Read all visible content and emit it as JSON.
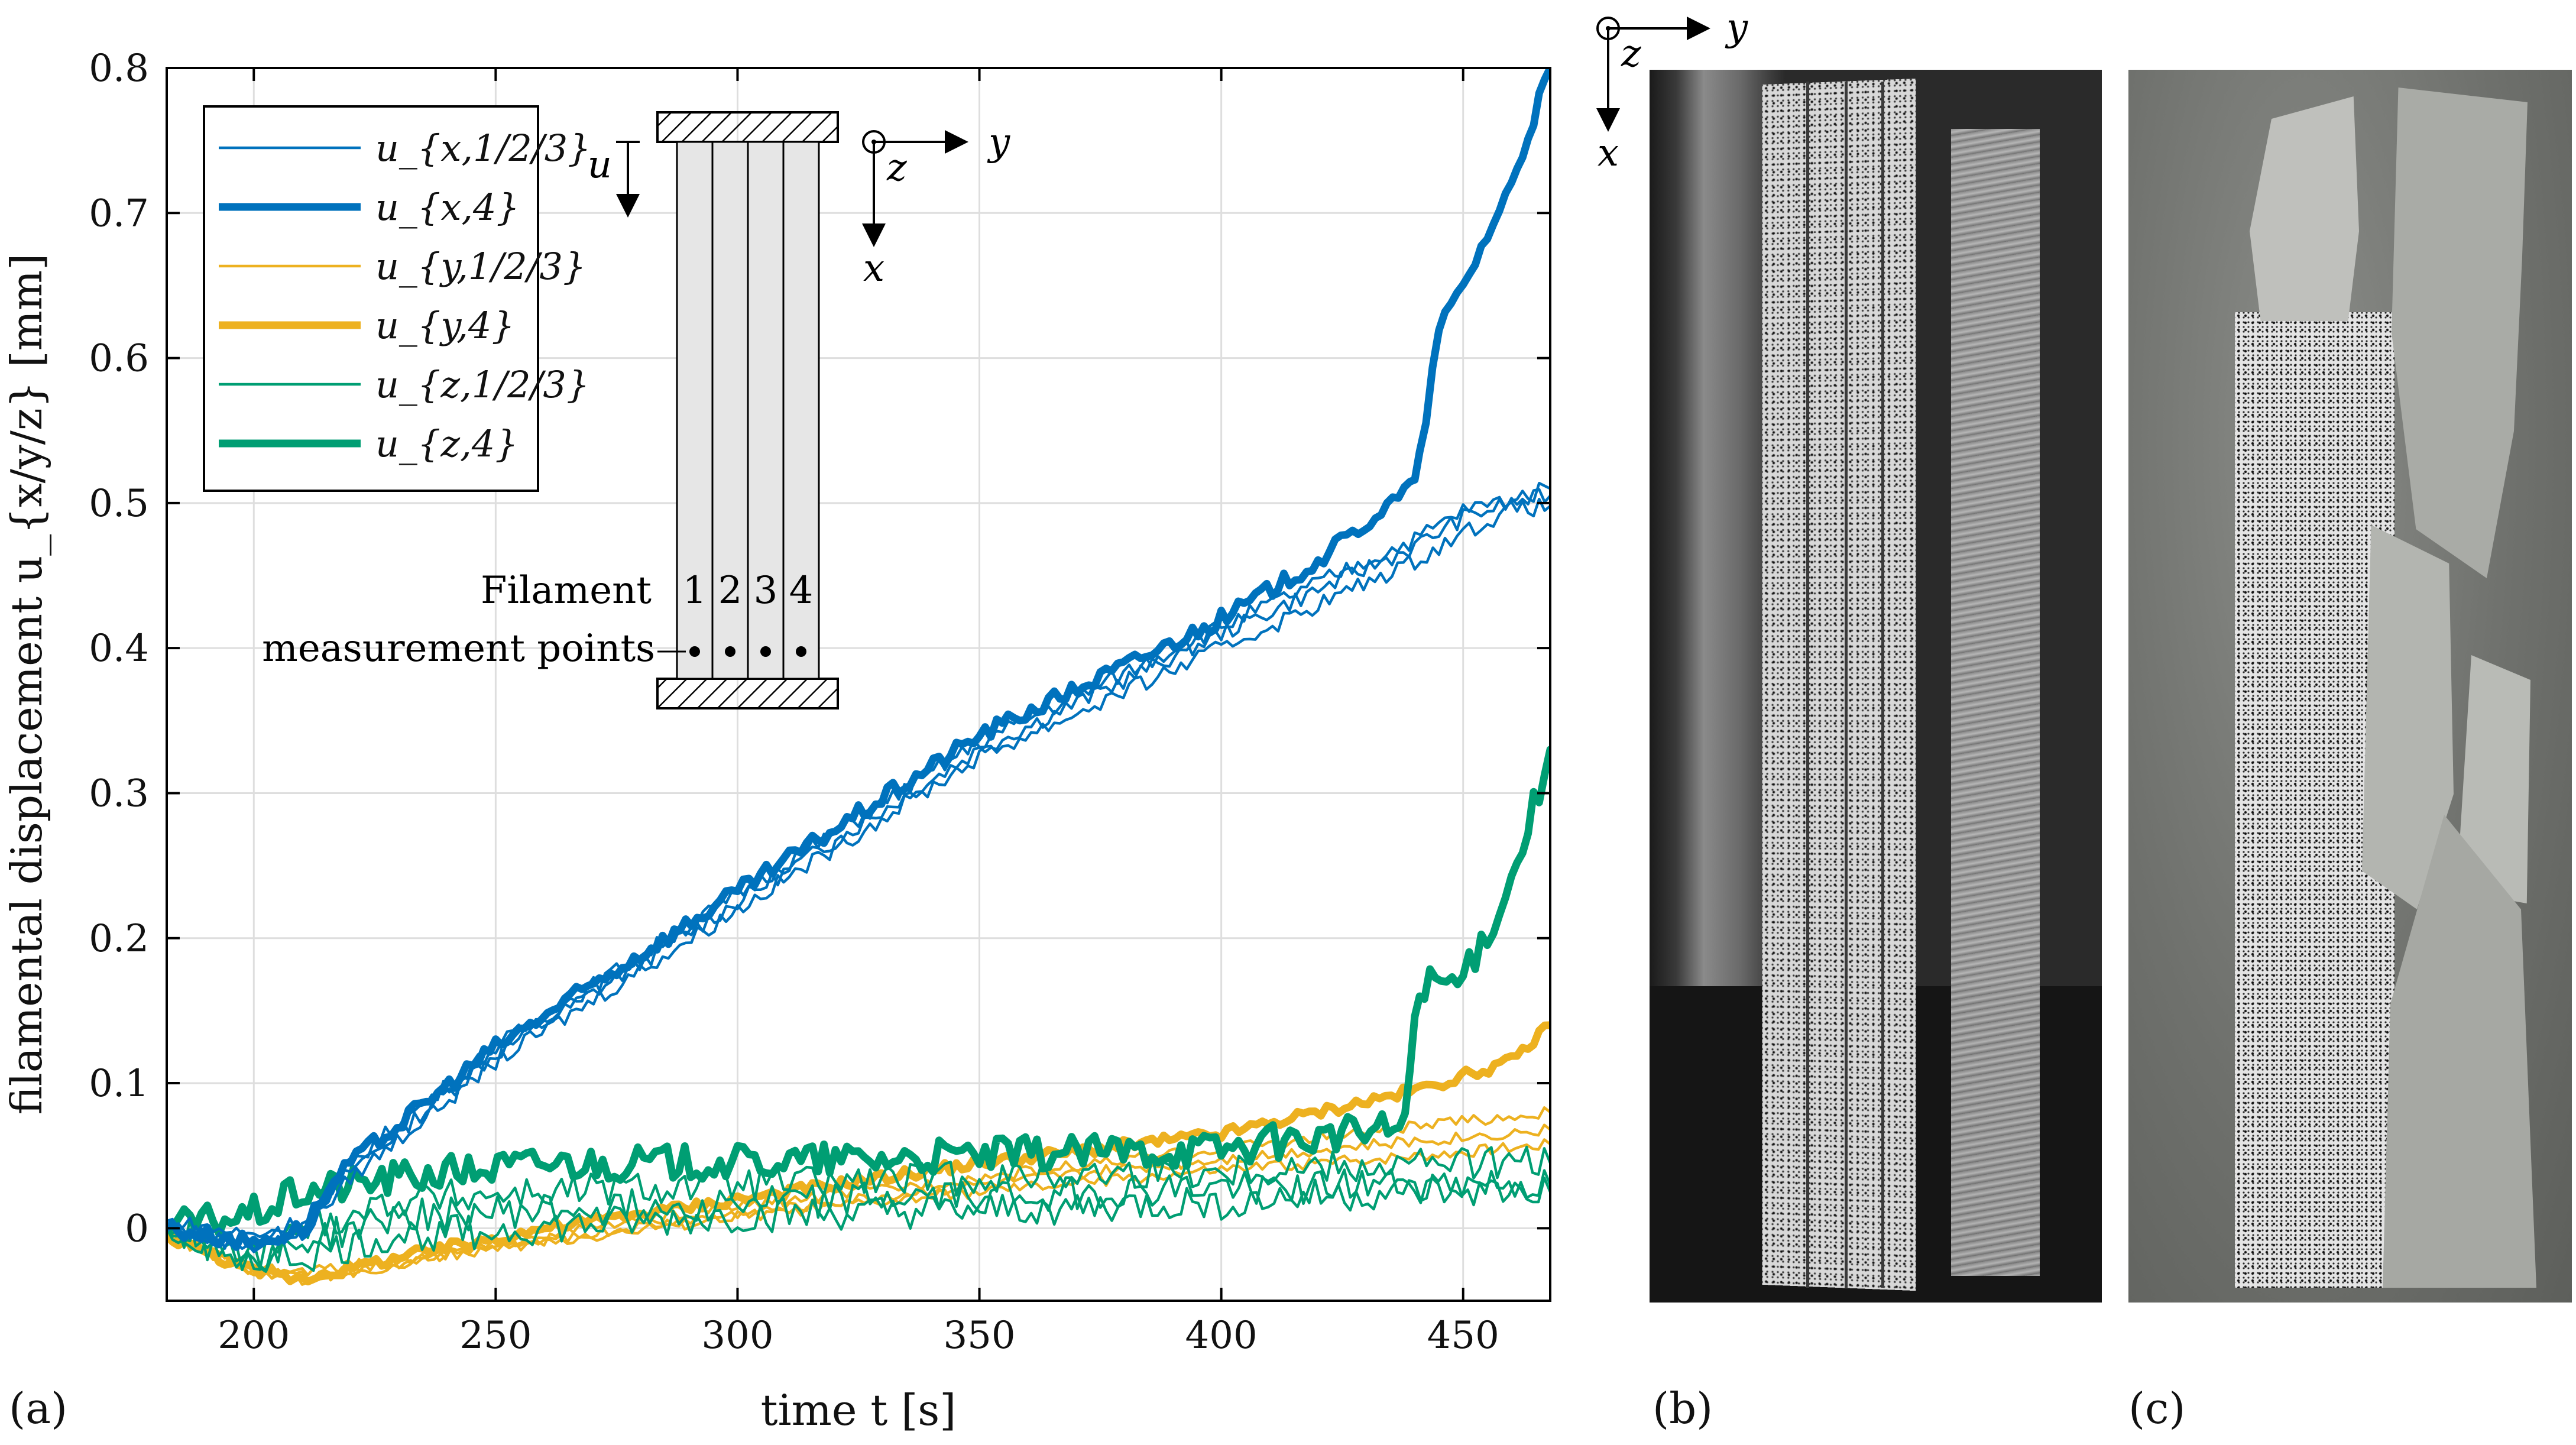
{
  "chart_data": {
    "type": "line",
    "panel_label": "(a)",
    "xlabel": "time t [s]",
    "ylabel": "filamental displacement u_{x/y/z} [mm]",
    "xlim": [
      182,
      468
    ],
    "ylim": [
      -0.05,
      0.8
    ],
    "xticks": [
      200,
      250,
      300,
      350,
      400,
      450
    ],
    "yticks": [
      0,
      0.1,
      0.2,
      0.3,
      0.4,
      0.5,
      0.6,
      0.7,
      0.8
    ],
    "xtick_labels": [
      "200",
      "250",
      "300",
      "350",
      "400",
      "450"
    ],
    "ytick_labels": [
      "0",
      "0.1",
      "0.2",
      "0.3",
      "0.4",
      "0.5",
      "0.6",
      "0.7",
      "0.8"
    ],
    "grid": true,
    "legend_position": "top-left",
    "colors": {
      "blue": "#0072BD",
      "orange": "#EDB120",
      "green": "#009E73"
    },
    "series": [
      {
        "name": "u_{x,1}",
        "legend": "u_{x,1/2/3}",
        "color": "#0072BD",
        "weight": "thin",
        "x": [
          182,
          200,
          210,
          220,
          250,
          300,
          350,
          400,
          420,
          440,
          450,
          460,
          468
        ],
        "y": [
          0.0,
          -0.01,
          0.0,
          0.04,
          0.12,
          0.225,
          0.33,
          0.41,
          0.44,
          0.47,
          0.49,
          0.5,
          0.505
        ]
      },
      {
        "name": "u_{x,2}",
        "legend": "",
        "color": "#0072BD",
        "weight": "thin",
        "x": [
          182,
          200,
          210,
          220,
          250,
          300,
          350,
          400,
          420,
          440,
          450,
          460,
          468
        ],
        "y": [
          0.005,
          -0.005,
          0.005,
          0.045,
          0.125,
          0.23,
          0.335,
          0.415,
          0.445,
          0.475,
          0.495,
          0.503,
          0.51
        ]
      },
      {
        "name": "u_{x,3}",
        "legend": "",
        "color": "#0072BD",
        "weight": "thin",
        "x": [
          182,
          200,
          210,
          220,
          250,
          300,
          350,
          400,
          420,
          440,
          450,
          460,
          468
        ],
        "y": [
          0.0,
          -0.012,
          -0.005,
          0.035,
          0.115,
          0.22,
          0.325,
          0.4,
          0.43,
          0.46,
          0.48,
          0.495,
          0.498
        ]
      },
      {
        "name": "u_{x,4}",
        "legend": "u_{x,4}",
        "color": "#0072BD",
        "weight": "thick",
        "x": [
          182,
          200,
          210,
          220,
          250,
          300,
          350,
          400,
          420,
          439,
          441,
          445,
          450,
          460,
          468
        ],
        "y": [
          0.0,
          -0.01,
          0.0,
          0.045,
          0.125,
          0.232,
          0.34,
          0.42,
          0.46,
          0.51,
          0.53,
          0.62,
          0.65,
          0.72,
          0.8
        ]
      },
      {
        "name": "u_{y,1}",
        "legend": "u_{y,1/2/3}",
        "color": "#EDB120",
        "weight": "thin",
        "x": [
          182,
          200,
          210,
          230,
          260,
          300,
          350,
          400,
          440,
          468
        ],
        "y": [
          -0.005,
          -0.03,
          -0.035,
          -0.025,
          -0.005,
          0.015,
          0.035,
          0.055,
          0.07,
          0.08
        ]
      },
      {
        "name": "u_{y,2}",
        "legend": "",
        "color": "#EDB120",
        "weight": "thin",
        "x": [
          182,
          200,
          210,
          230,
          260,
          300,
          350,
          400,
          440,
          468
        ],
        "y": [
          -0.005,
          -0.03,
          -0.033,
          -0.025,
          -0.008,
          0.01,
          0.03,
          0.048,
          0.06,
          0.068
        ]
      },
      {
        "name": "u_{y,3}",
        "legend": "",
        "color": "#EDB120",
        "weight": "thin",
        "x": [
          182,
          200,
          210,
          230,
          260,
          300,
          350,
          400,
          440,
          468
        ],
        "y": [
          -0.005,
          -0.028,
          -0.03,
          -0.022,
          -0.01,
          0.008,
          0.025,
          0.04,
          0.05,
          0.058
        ]
      },
      {
        "name": "u_{y,4}",
        "legend": "u_{y,4}",
        "color": "#EDB120",
        "weight": "thick",
        "x": [
          182,
          200,
          210,
          230,
          260,
          300,
          350,
          400,
          440,
          460,
          468
        ],
        "y": [
          -0.005,
          -0.03,
          -0.035,
          -0.02,
          0.0,
          0.02,
          0.045,
          0.065,
          0.095,
          0.115,
          0.14
        ]
      },
      {
        "name": "u_{z,1}",
        "legend": "u_{z,1/2/3}",
        "color": "#009E73",
        "weight": "thin",
        "x": [
          182,
          200,
          210,
          230,
          260,
          300,
          350,
          400,
          440,
          468
        ],
        "y": [
          0.0,
          -0.025,
          0.0,
          0.02,
          0.025,
          0.03,
          0.035,
          0.04,
          0.045,
          0.045
        ]
      },
      {
        "name": "u_{z,2}",
        "legend": "",
        "color": "#009E73",
        "weight": "thin",
        "x": [
          182,
          200,
          210,
          230,
          260,
          300,
          350,
          400,
          440,
          468
        ],
        "y": [
          0.0,
          -0.02,
          -0.01,
          0.008,
          0.012,
          0.018,
          0.022,
          0.028,
          0.03,
          0.03
        ]
      },
      {
        "name": "u_{z,3}",
        "legend": "",
        "color": "#009E73",
        "weight": "thin",
        "x": [
          182,
          200,
          210,
          230,
          260,
          300,
          350,
          400,
          440,
          468
        ],
        "y": [
          0.0,
          -0.02,
          -0.02,
          -0.005,
          0.0,
          0.008,
          0.012,
          0.018,
          0.025,
          0.025
        ]
      },
      {
        "name": "u_{z,4}",
        "legend": "u_{z,4}",
        "color": "#009E73",
        "weight": "thick",
        "x": [
          182,
          200,
          210,
          230,
          260,
          300,
          350,
          400,
          438,
          440,
          442,
          450,
          460,
          468
        ],
        "y": [
          0.0,
          0.01,
          0.025,
          0.035,
          0.045,
          0.045,
          0.05,
          0.055,
          0.07,
          0.15,
          0.17,
          0.17,
          0.24,
          0.33
        ]
      }
    ],
    "inset": {
      "displacement_label": "u",
      "axis_y": "y",
      "axis_z": "z",
      "axis_x": "x",
      "filament_label": "Filament",
      "filament_numbers": [
        "1",
        "2",
        "3",
        "4"
      ],
      "measurement_label": "measurement points"
    }
  },
  "photos": {
    "b": {
      "label": "(b)",
      "coord_y": "y",
      "coord_z": "z",
      "coord_x": "x"
    },
    "c": {
      "label": "(c)"
    }
  }
}
